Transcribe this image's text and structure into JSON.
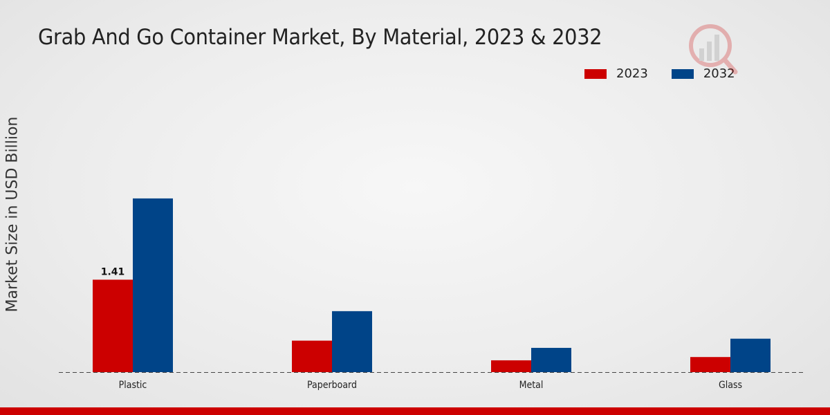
{
  "chart_data": {
    "type": "bar",
    "title": "Grab And Go Container Market, By Material, 2023 & 2032",
    "xlabel": "",
    "ylabel": "Market Size in USD Billion",
    "categories": [
      "Plastic",
      "Paperboard",
      "Metal",
      "Glass"
    ],
    "series": [
      {
        "name": "2023",
        "color": "#cc0000",
        "values": [
          1.41,
          0.48,
          0.18,
          0.23
        ]
      },
      {
        "name": "2032",
        "color": "#004488",
        "values": [
          2.65,
          0.93,
          0.37,
          0.51
        ]
      }
    ],
    "data_labels": [
      {
        "series": 0,
        "index": 0,
        "text": "1.41"
      }
    ],
    "ylim": [
      0,
      4.2
    ],
    "grid": false,
    "legend_position": "top-right"
  }
}
